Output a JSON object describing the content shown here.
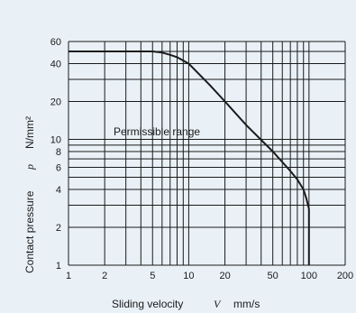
{
  "chart_data": {
    "type": "line",
    "x_scale": "log",
    "y_scale": "log",
    "xlim": [
      1,
      200
    ],
    "ylim": [
      1,
      60
    ],
    "grid": true,
    "x_gridlines": [
      1,
      2,
      3,
      4,
      5,
      6,
      7,
      8,
      9,
      10,
      20,
      30,
      40,
      50,
      60,
      70,
      80,
      90,
      100,
      200
    ],
    "y_gridlines": [
      1,
      2,
      3,
      4,
      5,
      6,
      7,
      8,
      9,
      10,
      20,
      30,
      40,
      50,
      60
    ],
    "x_ticks": [
      "1",
      "2",
      "5",
      "10",
      "20",
      "50",
      "100",
      "200"
    ],
    "x_tick_values": [
      1,
      2,
      5,
      10,
      20,
      50,
      100,
      200
    ],
    "y_ticks": [
      "1",
      "2",
      "4",
      "6",
      "8",
      "10",
      "20",
      "40",
      "60"
    ],
    "y_tick_values": [
      1,
      2,
      4,
      6,
      8,
      10,
      20,
      40,
      60
    ],
    "xlabel": "Sliding velocity",
    "xlabel_symbol": "V",
    "xlabel_unit": "mm/s",
    "ylabel": "Contact pressure",
    "ylabel_symbol": "p",
    "ylabel_unit": "N/mm²",
    "annotation": "Permissible range",
    "line_color": "#1a1a1a",
    "series": [
      {
        "x": [
          1,
          5,
          6,
          7,
          8,
          10,
          15,
          20,
          30,
          50,
          70,
          80,
          90,
          95,
          100,
          100
        ],
        "y": [
          50,
          50,
          49,
          47,
          45,
          40,
          27,
          20,
          13,
          8,
          5.6,
          4.8,
          4,
          3.4,
          2.8,
          1
        ]
      }
    ]
  }
}
